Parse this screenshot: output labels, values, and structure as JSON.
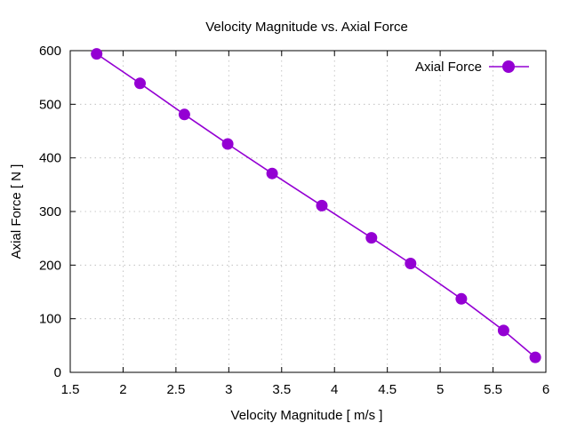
{
  "chart_data": {
    "type": "line",
    "title": "Velocity Magnitude vs. Axial Force",
    "xlabel": "Velocity Magnitude [ m/s ]",
    "ylabel": "Axial Force [ N ]",
    "xlim": [
      1.5,
      6
    ],
    "ylim": [
      0,
      600
    ],
    "xticks": [
      1.5,
      2,
      2.5,
      3,
      3.5,
      4,
      4.5,
      5,
      5.5,
      6
    ],
    "xtick_labels": [
      "1.5",
      "2",
      "2.5",
      "3",
      "3.5",
      "4",
      "4.5",
      "5",
      "5.5",
      "6"
    ],
    "yticks": [
      0,
      100,
      200,
      300,
      400,
      500,
      600
    ],
    "ytick_labels": [
      "0",
      "100",
      "200",
      "300",
      "400",
      "500",
      "600"
    ],
    "grid": true,
    "legend_position": "top-right",
    "series": [
      {
        "name": "Axial Force",
        "color": "#9400d3",
        "marker": "circle",
        "x": [
          1.75,
          2.16,
          2.58,
          2.99,
          3.41,
          3.88,
          4.35,
          4.72,
          5.2,
          5.6,
          5.9
        ],
        "y": [
          594,
          539,
          481,
          426,
          371,
          311,
          251,
          203,
          137,
          78,
          28
        ]
      }
    ]
  }
}
